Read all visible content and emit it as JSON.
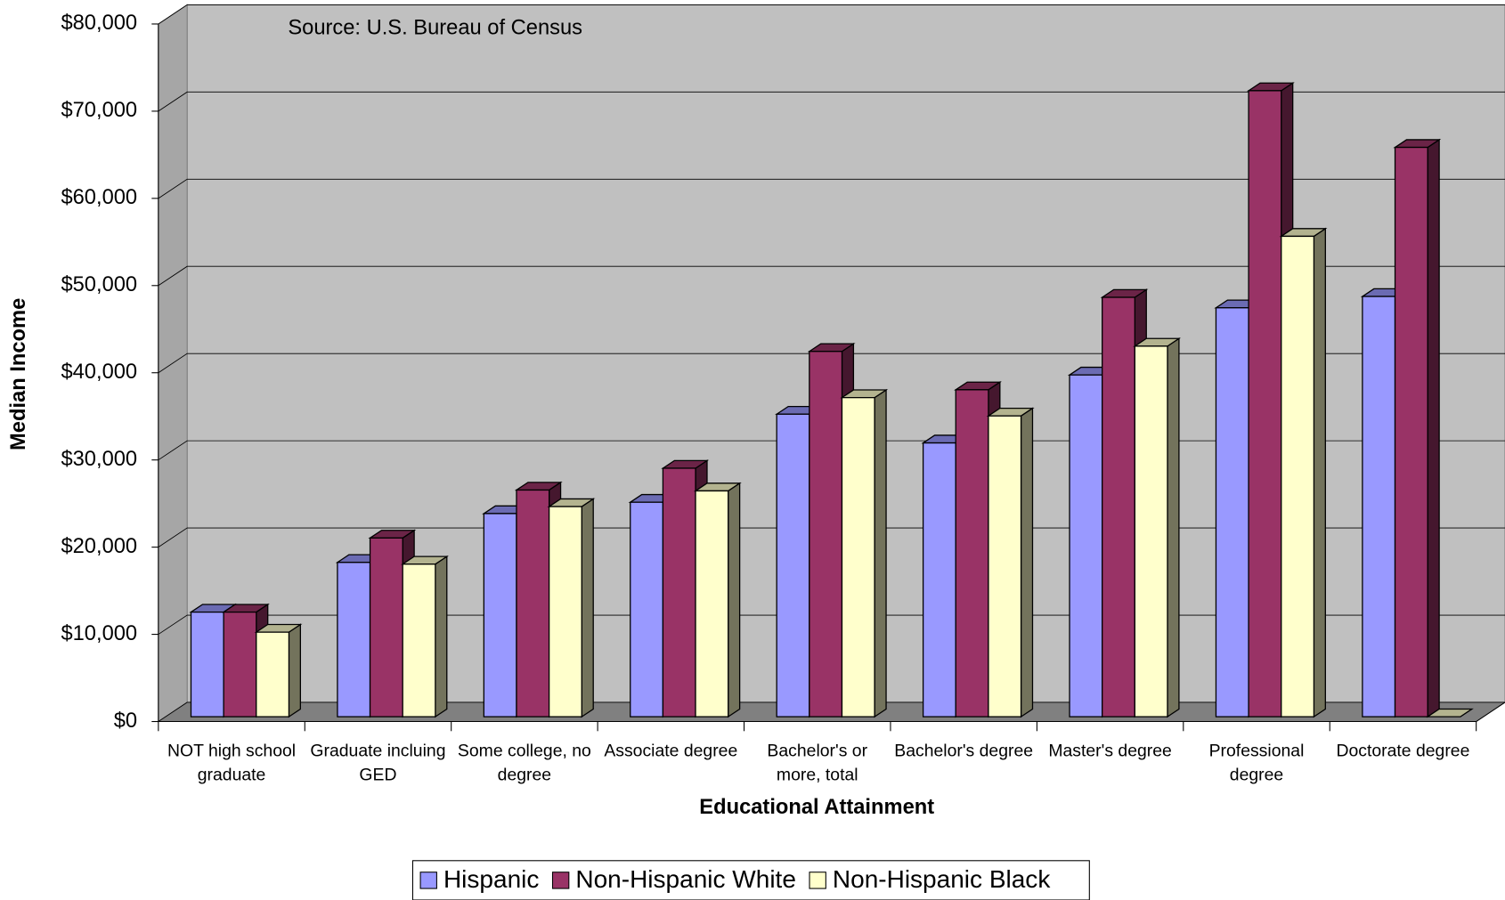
{
  "chart_data": {
    "type": "bar3d",
    "annotation": "Source: U.S. Bureau of Census",
    "x_label": "Educational Attainment",
    "y_label": "Median Income",
    "categories": [
      "NOT high school graduate",
      "Graduate incluing GED",
      "Some college, no degree",
      "Associate degree",
      "Bachelor's or more, total",
      "Bachelor's degree",
      "Master's degree",
      "Professional degree",
      "Doctorate degree"
    ],
    "series": [
      {
        "name": "Hispanic",
        "color": "#9999ff",
        "values": [
          12000,
          17700,
          23300,
          24600,
          34700,
          31400,
          39200,
          46900,
          48200
        ]
      },
      {
        "name": "Non-Hispanic White",
        "color": "#993366",
        "values": [
          12000,
          20500,
          26000,
          28500,
          41900,
          37500,
          48100,
          71800,
          65300
        ]
      },
      {
        "name": "Non-Hispanic Black",
        "color": "#ffffcc",
        "values": [
          9700,
          17500,
          24100,
          25900,
          36600,
          34500,
          42500,
          55100,
          0
        ]
      }
    ],
    "ylim": [
      0,
      80000
    ],
    "yticks": [
      {
        "value": 0,
        "label": "$0"
      },
      {
        "value": 10000,
        "label": "$10,000"
      },
      {
        "value": 20000,
        "label": "$20,000"
      },
      {
        "value": 30000,
        "label": "$30,000"
      },
      {
        "value": 40000,
        "label": "$40,000"
      },
      {
        "value": 50000,
        "label": "$50,000"
      },
      {
        "value": 60000,
        "label": "$60,000"
      },
      {
        "value": 70000,
        "label": "$70,000"
      },
      {
        "value": 80000,
        "label": "$80,000"
      }
    ],
    "grid": true,
    "legend": "bottom"
  }
}
